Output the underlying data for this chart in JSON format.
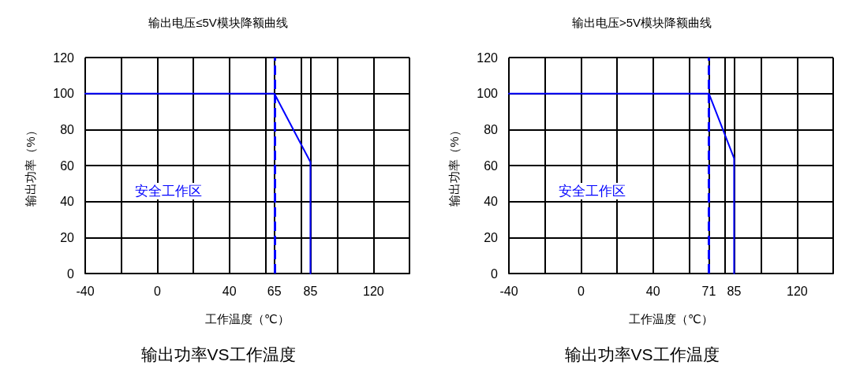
{
  "chart_data": [
    {
      "type": "line",
      "title": "输出电压≤5V模块降额曲线",
      "xlabel": "工作温度（℃）",
      "ylabel": "输出功率（%）",
      "series": [
        {
          "color": "#0000ff",
          "x": [
            -40,
            65,
            85,
            85
          ],
          "values": [
            100,
            100,
            62,
            0
          ]
        }
      ],
      "xlim": [
        -40,
        140
      ],
      "ylim": [
        0,
        120
      ],
      "xticks": [
        -40,
        {
          "value": -20,
          "label": null
        },
        0,
        {
          "value": 20,
          "label": null
        },
        40,
        {
          "value": 60,
          "label": null
        },
        65,
        {
          "value": 80,
          "label": null
        },
        85,
        {
          "value": 100,
          "label": null
        },
        120,
        {
          "value": 140,
          "label": null
        }
      ],
      "yticks": [
        0,
        20,
        40,
        60,
        80,
        100,
        120
      ],
      "grid": true,
      "marker": "none",
      "line_style": "solid",
      "ref_lines": [
        {
          "axis": "x",
          "value": 65,
          "color": "#0000ff",
          "line_style": "dashed"
        }
      ],
      "annotations": [
        "安全工作区",
        "输出功率VS工作温度"
      ]
    },
    {
      "type": "line",
      "title": "输出电压>5V模块降额曲线",
      "xlabel": "工作温度（℃）",
      "ylabel": "输出功率（%）",
      "series": [
        {
          "color": "#0000ff",
          "x": [
            -40,
            71,
            85,
            85
          ],
          "values": [
            100,
            100,
            64,
            0
          ]
        }
      ],
      "xlim": [
        -40,
        140
      ],
      "ylim": [
        0,
        120
      ],
      "xticks": [
        -40,
        {
          "value": -20,
          "label": null
        },
        0,
        {
          "value": 20,
          "label": null
        },
        40,
        {
          "value": 60,
          "label": null
        },
        71,
        {
          "value": 80,
          "label": null
        },
        85,
        {
          "value": 100,
          "label": null
        },
        120,
        {
          "value": 140,
          "label": null
        }
      ],
      "yticks": [
        0,
        20,
        40,
        60,
        80,
        100,
        120
      ],
      "grid": true,
      "marker": "none",
      "line_style": "solid",
      "ref_lines": [
        {
          "axis": "x",
          "value": 71,
          "color": "#0000ff",
          "line_style": "dashed"
        }
      ],
      "annotations": [
        "安全工作区",
        "输出功率VS工作温度"
      ]
    }
  ]
}
